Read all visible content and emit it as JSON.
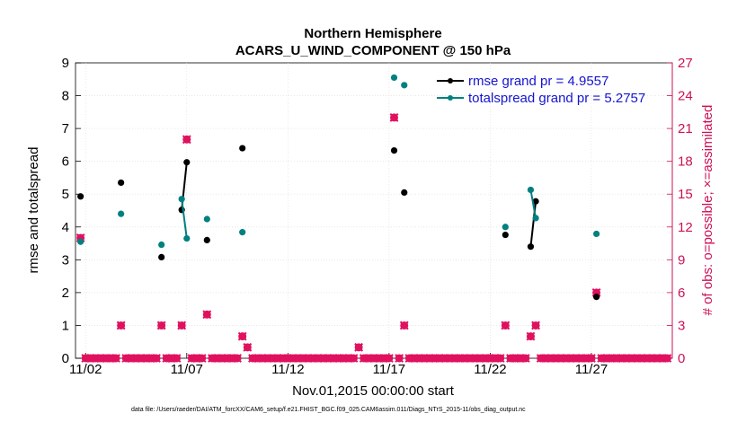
{
  "chart_data": {
    "type": "line",
    "title": "Northern Hemisphere",
    "subtitle": "ACARS_U_WIND_COMPONENT @ 150 hPa",
    "xlabel": "Nov.01,2015 00:00:00 start",
    "ylabel": "rmse and totalspread",
    "y2label": "# of obs: o=possible; ×=assimilated",
    "footnote": "data file: /Users/raeder/DAI/ATM_forcXX/CAM6_setup/f.e21.FHIST_BGC.f09_025.CAM6assim.011/Diags_NTrS_2015-11/obs_diag_output.nc",
    "xlim": [
      1.5,
      31
    ],
    "ylim": [
      0,
      9
    ],
    "y2lim": [
      0,
      27
    ],
    "xticks": [
      2,
      7,
      12,
      17,
      22,
      27
    ],
    "xtick_labels": [
      "11/02",
      "11/07",
      "11/12",
      "11/17",
      "11/22",
      "11/27"
    ],
    "yticks": [
      0,
      1,
      2,
      3,
      4,
      5,
      6,
      7,
      8,
      9
    ],
    "y2ticks": [
      0,
      3,
      6,
      9,
      12,
      15,
      18,
      21,
      24,
      27
    ],
    "legend_location": "top-right",
    "colors": {
      "rmse": "#000000",
      "spread": "#008080",
      "obs": "#e0115f",
      "y2axis": "#cc1155",
      "legend_text": "#1515d0"
    },
    "series": [
      {
        "name": "rmse grand pr = 4.9557",
        "x": [
          1.75,
          3.75,
          5.75,
          6.75,
          7.0,
          8.0,
          9.75,
          17.25,
          17.75,
          22.75,
          24.0,
          24.25,
          27.25
        ],
        "values": [
          4.93,
          5.35,
          3.08,
          4.52,
          5.97,
          3.6,
          6.4,
          6.33,
          5.05,
          3.76,
          3.4,
          4.78,
          1.87
        ],
        "connect": [
          [
            3,
            4
          ],
          [
            10,
            11
          ]
        ]
      },
      {
        "name": "totalspread grand pr = 5.2757",
        "x": [
          1.75,
          3.75,
          5.75,
          6.75,
          7.0,
          8.0,
          9.75,
          17.25,
          17.75,
          22.75,
          24.0,
          24.25,
          27.25
        ],
        "values": [
          3.55,
          4.4,
          3.46,
          4.85,
          3.65,
          4.24,
          3.84,
          8.55,
          8.32,
          4.0,
          5.13,
          4.27,
          3.79
        ],
        "connect": [
          [
            3,
            4
          ],
          [
            10,
            11
          ]
        ]
      },
      {
        "name": "obs possible",
        "axis": "right",
        "x": [
          1.75,
          3.75,
          5.75,
          6.75,
          7.0,
          8.0,
          9.75,
          10.0,
          15.5,
          17.25,
          17.75,
          22.75,
          24.0,
          24.25,
          27.25
        ],
        "values": [
          11,
          3,
          3,
          3,
          20,
          4,
          2,
          1,
          1,
          22,
          3,
          3,
          2,
          3,
          6
        ]
      },
      {
        "name": "obs assimilated",
        "axis": "right",
        "x": [
          1.75,
          3.75,
          5.75,
          6.75,
          7.0,
          8.0,
          9.75,
          10.0,
          15.5,
          17.25,
          17.75,
          22.75,
          24.0,
          24.25,
          27.25
        ],
        "values": [
          11,
          3,
          3,
          3,
          20,
          4,
          2,
          1,
          1,
          22,
          3,
          3,
          2,
          3,
          6
        ]
      },
      {
        "name": "obs zero",
        "axis": "right",
        "x_range": [
          1.5,
          31,
          0.25
        ],
        "values_const": 0
      }
    ]
  }
}
